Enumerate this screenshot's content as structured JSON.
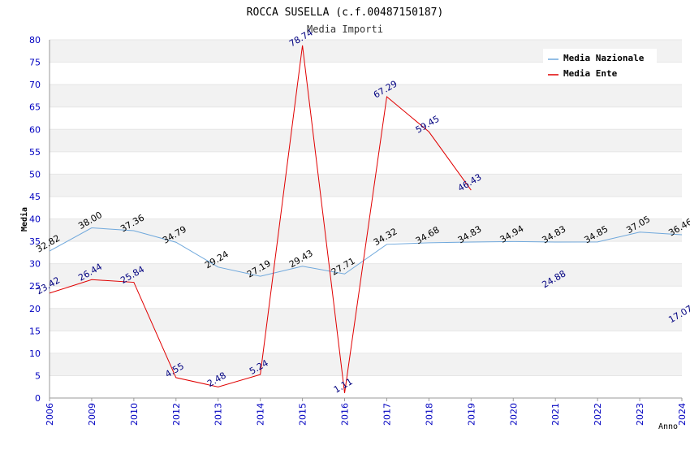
{
  "chart_data": {
    "type": "line",
    "title": "ROCCA SUSELLA (c.f.00487150187)",
    "subtitle": "Media Importi",
    "xlabel": "Anno",
    "ylabel": "Media",
    "ylim": [
      0,
      80
    ],
    "yticks": [
      0,
      5,
      10,
      15,
      20,
      25,
      30,
      35,
      40,
      45,
      50,
      55,
      60,
      65,
      70,
      75,
      80
    ],
    "x": [
      "2006",
      "2009",
      "2010",
      "2012",
      "2013",
      "2014",
      "2015",
      "2016",
      "2017",
      "2018",
      "2019",
      "2020",
      "2021",
      "2022",
      "2023",
      "2024"
    ],
    "grid": "horizontal alternating bands",
    "legend_position": "top-right",
    "colors": {
      "nazionale": "#6fa8dc",
      "ente": "#e00000",
      "nazionale_label": "#000000",
      "ente_label": "#000080",
      "tick_label": "#0000c0",
      "band": "#f2f2f2"
    },
    "series": [
      {
        "name": "Media Nazionale",
        "key": "nazionale",
        "values": [
          32.82,
          38.0,
          37.36,
          34.79,
          29.24,
          27.19,
          29.43,
          27.71,
          34.32,
          34.68,
          34.83,
          34.94,
          34.83,
          34.85,
          37.05,
          36.46
        ],
        "labels": [
          "32.82",
          "38.00",
          "37.36",
          "34.79",
          "29.24",
          "27.19",
          "29.43",
          "27.71",
          "34.32",
          "34.68",
          "34.83",
          "34.94",
          "34.83",
          "34.85",
          "37.05",
          "36.46"
        ]
      },
      {
        "name": "Media Ente",
        "key": "ente",
        "values": [
          23.42,
          26.44,
          25.84,
          4.55,
          2.48,
          5.24,
          78.74,
          1.11,
          67.29,
          59.45,
          46.43,
          null,
          24.88,
          null,
          null,
          17.07
        ],
        "labels": [
          "23.42",
          "26.44",
          "25.84",
          "4.55",
          "2.48",
          "5.24",
          "78.74",
          "1.11",
          "67.29",
          "59.45",
          "46.43",
          null,
          "24.88",
          null,
          null,
          "17.07"
        ]
      }
    ]
  }
}
